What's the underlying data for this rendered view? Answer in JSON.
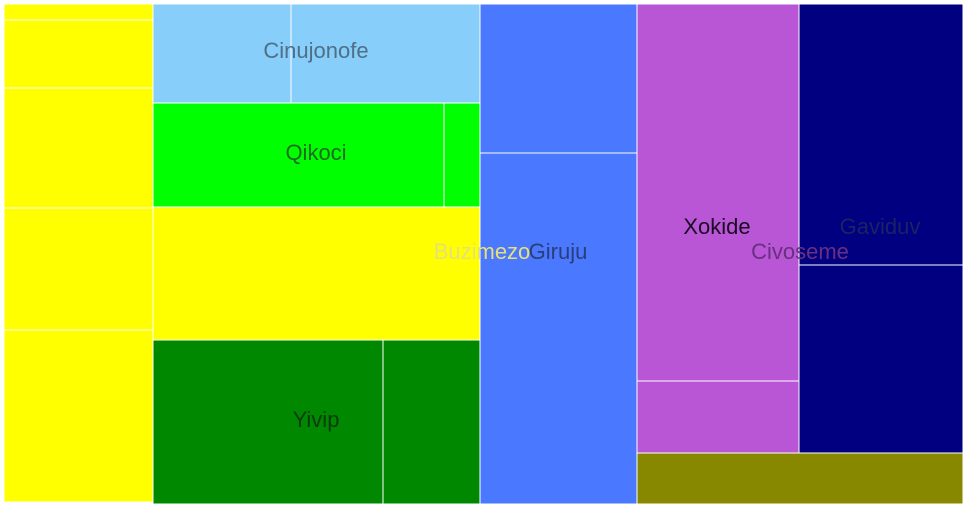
{
  "chart_data": {
    "type": "treemap",
    "title": "",
    "groups": [
      {
        "name": "Buzimezo",
        "color": "#ffff00",
        "label_color": "#e6e07a",
        "children": [
          {
            "name": "Buzimezo",
            "value": 2.4
          },
          {
            "name": "Buzimezo",
            "value": 10.2
          },
          {
            "name": "Buzimezo",
            "value": 18.0
          },
          {
            "name": "Buzimezo",
            "value": 18.3
          },
          {
            "name": "Buzimezo",
            "value": 25.8
          },
          {
            "name": "Buzimezo",
            "value": 43.9
          }
        ]
      },
      {
        "name": "Cinujonofe",
        "color": "#87cefa",
        "label_color": "#4f6f86",
        "children": [
          {
            "name": "Cinujonofe",
            "value": 13.6
          },
          {
            "name": "Cinujonofe",
            "value": 18.7
          }
        ]
      },
      {
        "name": "Qikoci",
        "color": "#00ff00",
        "label_color": "#1e6b1e",
        "children": [
          {
            "name": "Qikoci",
            "value": 29.8
          },
          {
            "name": "Qikoci",
            "value": 3.7
          }
        ]
      },
      {
        "name": "Yivip",
        "color": "#008800",
        "label_color": "#0c3b0c",
        "children": [
          {
            "name": "Yivip",
            "value": 37.4
          },
          {
            "name": "Yivip",
            "value": 15.8
          }
        ]
      },
      {
        "name": "Giruju",
        "color": "#4a78ff",
        "label_color": "#2a3f7a",
        "children": [
          {
            "name": "Giruju",
            "value": 23.3
          },
          {
            "name": "Giruju",
            "value": 54.7
          }
        ]
      },
      {
        "name": "Civoseme",
        "color": "#b856d6",
        "label_color": "#6a2f80",
        "children": [
          {
            "name": "Xokide",
            "value": 60.3,
            "color": "#b856d6",
            "label_color": "#1a0a22",
            "labeled": true
          },
          {
            "name": "Civoseme",
            "value": 11.4,
            "color": "#b856d6"
          },
          {
            "name": "Gaviduv",
            "value": 42.1,
            "color": "#000080",
            "label_color": "#1c2266",
            "labeled": true
          },
          {
            "name": "Civoseme",
            "value": 30.8,
            "color": "#000080"
          },
          {
            "name": "Civoseme",
            "value": 16.0,
            "color": "#888800"
          }
        ]
      }
    ]
  }
}
